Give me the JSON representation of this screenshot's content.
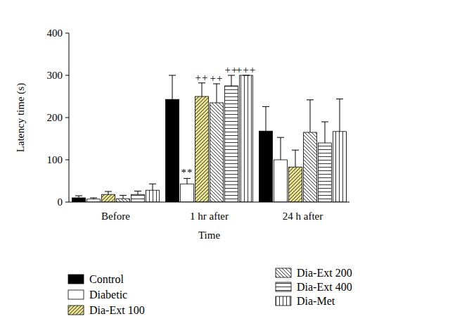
{
  "chart_data": {
    "type": "bar",
    "x_label": "Time",
    "y_label": "Latency time (s)",
    "categories": [
      "Before",
      "1 hr after",
      "24 h after"
    ],
    "ylim": [
      0,
      400
    ],
    "yticks": [
      0,
      100,
      200,
      300,
      400
    ],
    "grid": false,
    "legend": "bottom",
    "series": [
      {
        "name": "Control",
        "color": "#000000",
        "values": [
          10,
          243,
          168
        ],
        "errors": [
          5,
          57,
          58
        ]
      },
      {
        "name": "Diabetic",
        "color": "#ffffff",
        "values": [
          7,
          43,
          100
        ],
        "errors": [
          3,
          13,
          53
        ]
      },
      {
        "name": "Dia-Ext 100",
        "color": "#e6df8a",
        "values": [
          18,
          250,
          83
        ],
        "errors": [
          7,
          32,
          40
        ]
      },
      {
        "name": "Dia-Ext 200",
        "color": "#ffffff",
        "values": [
          8,
          235,
          165
        ],
        "errors": [
          8,
          45,
          77
        ]
      },
      {
        "name": "Dia-Ext 400",
        "color": "#ffffff",
        "values": [
          18,
          275,
          140
        ],
        "errors": [
          8,
          25,
          50
        ]
      },
      {
        "name": "Dia-Met",
        "color": "#ffffff",
        "values": [
          28,
          300,
          167
        ],
        "errors": [
          15,
          0,
          77
        ]
      }
    ],
    "annotations": [
      {
        "text": "**",
        "category": "1 hr after",
        "series": "Diabetic"
      },
      {
        "text": "++",
        "category": "1 hr after",
        "series": "Dia-Ext 100"
      },
      {
        "text": "++",
        "category": "1 hr after",
        "series": "Dia-Ext 200"
      },
      {
        "text": "++",
        "category": "1 hr after",
        "series": "Dia-Ext 400"
      },
      {
        "text": "+++",
        "category": "1 hr after",
        "series": "Dia-Met"
      }
    ]
  }
}
